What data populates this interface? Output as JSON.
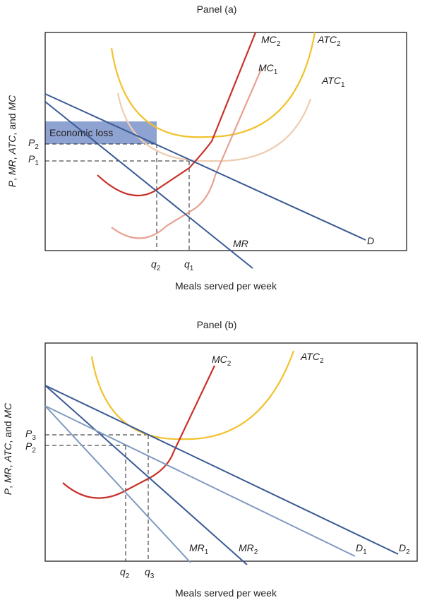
{
  "panel_a": {
    "title": "Panel (a)",
    "xlabel": "Meals served per week",
    "ylabel": [
      "P",
      ", ",
      "MR",
      ", ",
      "ATC",
      ", and ",
      "MC"
    ],
    "loss_label": "Economic loss",
    "curves": {
      "mc2": {
        "base": "MC",
        "sub": "2"
      },
      "mc1": {
        "base": "MC",
        "sub": "1"
      },
      "atc2": {
        "base": "ATC",
        "sub": "2"
      },
      "atc1": {
        "base": "ATC",
        "sub": "1"
      },
      "mr": {
        "base": "MR",
        "sub": ""
      },
      "d": {
        "base": "D",
        "sub": ""
      }
    },
    "ticks_y": [
      {
        "base": "P",
        "sub": "2"
      },
      {
        "base": "P",
        "sub": "1"
      }
    ],
    "ticks_x": [
      {
        "base": "q",
        "sub": "2"
      },
      {
        "base": "q",
        "sub": "1"
      }
    ],
    "colors": {
      "mc2": "#c8312a",
      "mc1": "#e8a090",
      "atc2": "#f2c22e",
      "atc1": "#eecdb2",
      "demand": "#3a5a94",
      "loss": "#8ea3d2"
    }
  },
  "panel_b": {
    "title": "Panel (b)",
    "xlabel": "Meals served per week",
    "ylabel": [
      "P",
      ", ",
      "MR",
      ", ",
      "ATC",
      ", and ",
      "MC"
    ],
    "curves": {
      "mc2": {
        "base": "MC",
        "sub": "2"
      },
      "atc2": {
        "base": "ATC",
        "sub": "2"
      },
      "mr1": {
        "base": "MR",
        "sub": "1"
      },
      "mr2": {
        "base": "MR",
        "sub": "2"
      },
      "d1": {
        "base": "D",
        "sub": "1"
      },
      "d2": {
        "base": "D",
        "sub": "2"
      }
    },
    "ticks_y": [
      {
        "base": "P",
        "sub": "3"
      },
      {
        "base": "P",
        "sub": "2"
      }
    ],
    "ticks_x": [
      {
        "base": "q",
        "sub": "2"
      },
      {
        "base": "q",
        "sub": "3"
      }
    ],
    "colors": {
      "mc2": "#c8312a",
      "atc2": "#f2c22e",
      "dark": "#3a5a94",
      "light": "#7f9ac0"
    }
  }
}
